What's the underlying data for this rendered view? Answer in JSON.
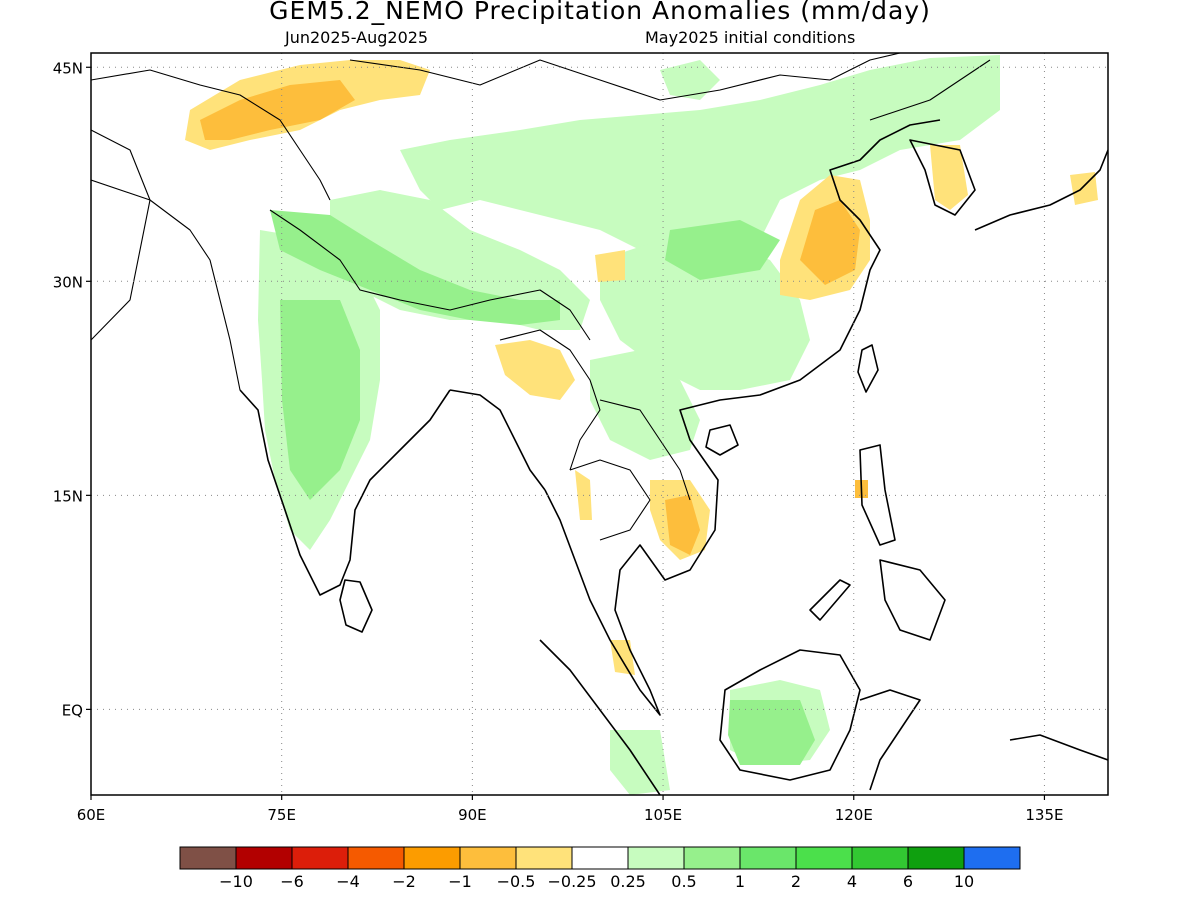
{
  "header": {
    "title": "GEM5.2_NEMO Precipitation Anomalies (mm/day)",
    "period": "Jun2025-Aug2025",
    "init": "May2025 initial conditions"
  },
  "map": {
    "region": {
      "lon_min": 60,
      "lon_max": 140,
      "lat_min": -6,
      "lat_max": 46
    },
    "lat_ticks": [
      {
        "lat": 45,
        "label": "45N"
      },
      {
        "lat": 30,
        "label": "30N"
      },
      {
        "lat": 15,
        "label": "15N"
      },
      {
        "lat": 0,
        "label": "EQ"
      }
    ],
    "lon_ticks": [
      {
        "lon": 60,
        "label": "60E"
      },
      {
        "lon": 75,
        "label": "75E"
      },
      {
        "lon": 90,
        "label": "90E"
      },
      {
        "lon": 105,
        "label": "105E"
      },
      {
        "lon": 120,
        "label": "120E"
      },
      {
        "lon": 135,
        "label": "135E"
      }
    ],
    "gridlines": "dotted"
  },
  "colorbar": {
    "colors": [
      "#7f5046",
      "#b20000",
      "#dc1e0a",
      "#f55a00",
      "#fc9c00",
      "#fdbe3c",
      "#ffe27a",
      "#ffffff",
      "#c7fcbf",
      "#96f08c",
      "#6ae66a",
      "#4be04b",
      "#32c832",
      "#0fa00f",
      "#1e6ef0"
    ],
    "labels": [
      "-10",
      "-6",
      "-4",
      "-2",
      "-1",
      "-0.5",
      "-0.25",
      "0.25",
      "0.5",
      "1",
      "2",
      "4",
      "6",
      "10"
    ]
  },
  "colors": {
    "wet": "#96f08c",
    "wet_light": "#c7fcbf",
    "wet_strong": "#6ae66a",
    "dry": "#ffe27a",
    "dry_med": "#fdbe3c",
    "dry_strong": "#fc9c00"
  }
}
